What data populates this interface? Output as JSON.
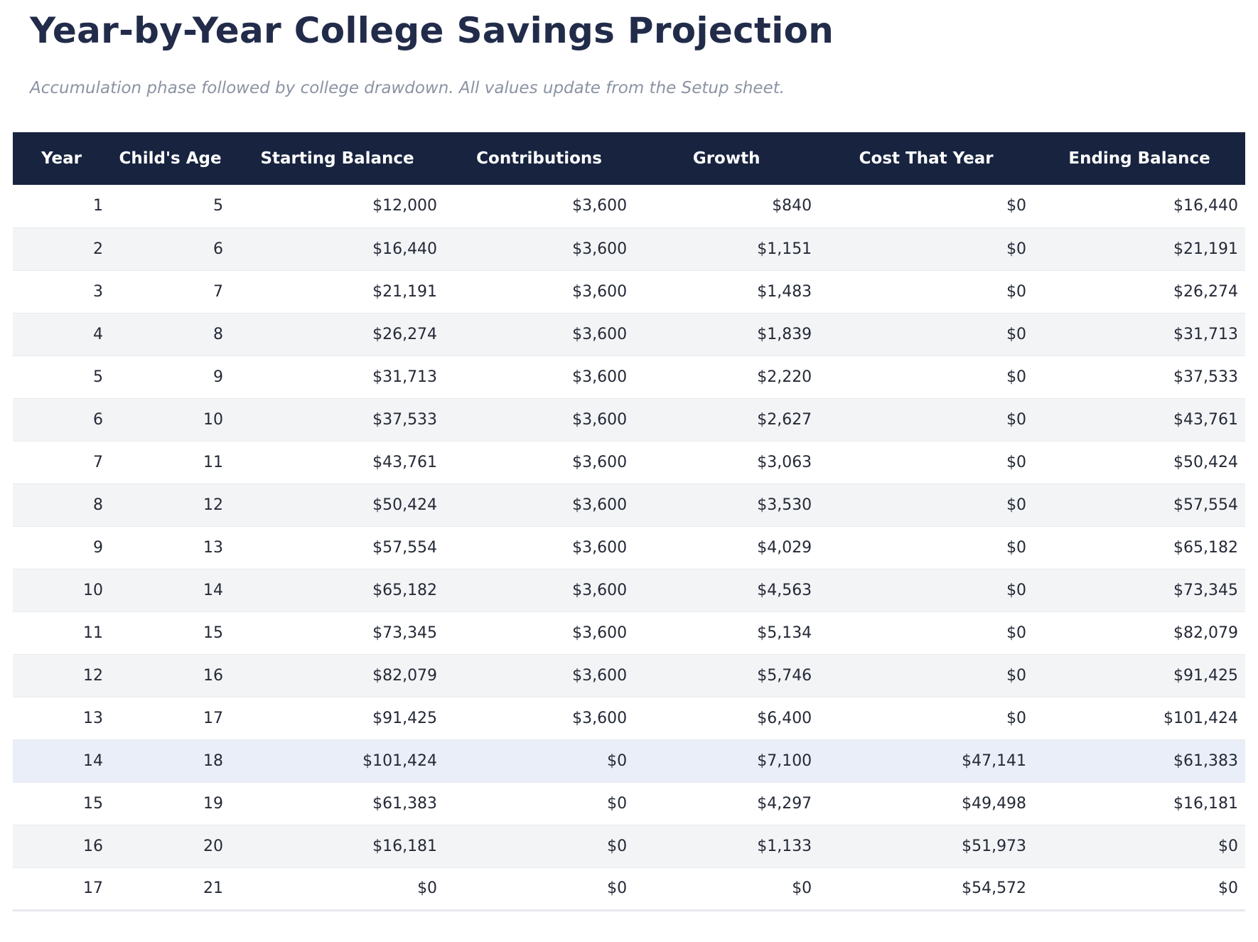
{
  "page": {
    "title": "Year-by-Year College Savings Projection",
    "subtitle": "Accumulation phase followed by college drawdown. All values update from the Setup sheet."
  },
  "colors": {
    "header_bg": "#17233f",
    "header_text": "#ffffff",
    "title_text": "#222c4a",
    "subtitle_text": "#8b93a3",
    "row_alt_bg": "#f3f4f6",
    "highlight_row_bg": "#eaeef8",
    "body_text": "#242936",
    "row_border": "#e8eaee",
    "table_bottom_border": "#e6e8ec"
  },
  "chart_data": {
    "type": "table",
    "title": "Year-by-Year College Savings Projection",
    "columns": [
      "Year",
      "Child's Age",
      "Starting Balance",
      "Contributions",
      "Growth",
      "Cost That Year",
      "Ending Balance"
    ],
    "highlight_row_index": 13,
    "rows": [
      [
        "1",
        "5",
        "$12,000",
        "$3,600",
        "$840",
        "$0",
        "$16,440"
      ],
      [
        "2",
        "6",
        "$16,440",
        "$3,600",
        "$1,151",
        "$0",
        "$21,191"
      ],
      [
        "3",
        "7",
        "$21,191",
        "$3,600",
        "$1,483",
        "$0",
        "$26,274"
      ],
      [
        "4",
        "8",
        "$26,274",
        "$3,600",
        "$1,839",
        "$0",
        "$31,713"
      ],
      [
        "5",
        "9",
        "$31,713",
        "$3,600",
        "$2,220",
        "$0",
        "$37,533"
      ],
      [
        "6",
        "10",
        "$37,533",
        "$3,600",
        "$2,627",
        "$0",
        "$43,761"
      ],
      [
        "7",
        "11",
        "$43,761",
        "$3,600",
        "$3,063",
        "$0",
        "$50,424"
      ],
      [
        "8",
        "12",
        "$50,424",
        "$3,600",
        "$3,530",
        "$0",
        "$57,554"
      ],
      [
        "9",
        "13",
        "$57,554",
        "$3,600",
        "$4,029",
        "$0",
        "$65,182"
      ],
      [
        "10",
        "14",
        "$65,182",
        "$3,600",
        "$4,563",
        "$0",
        "$73,345"
      ],
      [
        "11",
        "15",
        "$73,345",
        "$3,600",
        "$5,134",
        "$0",
        "$82,079"
      ],
      [
        "12",
        "16",
        "$82,079",
        "$3,600",
        "$5,746",
        "$0",
        "$91,425"
      ],
      [
        "13",
        "17",
        "$91,425",
        "$3,600",
        "$6,400",
        "$0",
        "$101,424"
      ],
      [
        "14",
        "18",
        "$101,424",
        "$0",
        "$7,100",
        "$47,141",
        "$61,383"
      ],
      [
        "15",
        "19",
        "$61,383",
        "$0",
        "$4,297",
        "$49,498",
        "$16,181"
      ],
      [
        "16",
        "20",
        "$16,181",
        "$0",
        "$1,133",
        "$51,973",
        "$0"
      ],
      [
        "17",
        "21",
        "$0",
        "$0",
        "$0",
        "$54,572",
        "$0"
      ]
    ]
  }
}
